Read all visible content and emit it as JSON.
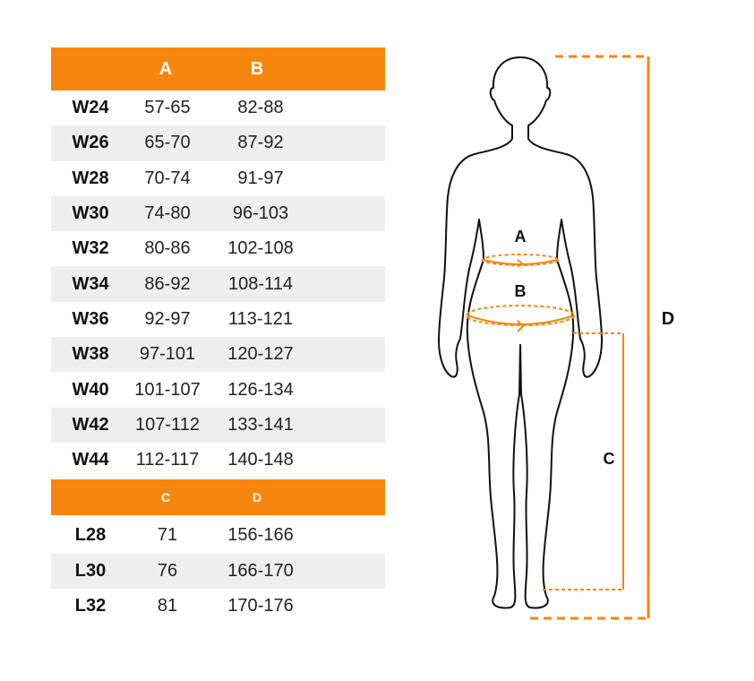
{
  "table_top": {
    "headers": [
      "A",
      "B"
    ],
    "rows": [
      [
        "W24",
        "57-65",
        "82-88"
      ],
      [
        "W26",
        "65-70",
        "87-92"
      ],
      [
        "W28",
        "70-74",
        "91-97"
      ],
      [
        "W30",
        "74-80",
        "96-103"
      ],
      [
        "W32",
        "80-86",
        "102-108"
      ],
      [
        "W34",
        "86-92",
        "108-114"
      ],
      [
        "W36",
        "92-97",
        "113-121"
      ],
      [
        "W38",
        "97-101",
        "120-127"
      ],
      [
        "W40",
        "101-107",
        "126-134"
      ],
      [
        "W42",
        "107-112",
        "133-141"
      ],
      [
        "W44",
        "112-117",
        "140-148"
      ]
    ]
  },
  "table_bottom": {
    "headers": [
      "C",
      "D"
    ],
    "rows": [
      [
        "L28",
        "71",
        "156-166"
      ],
      [
        "L30",
        "76",
        "166-170"
      ],
      [
        "L32",
        "81",
        "170-176"
      ]
    ]
  },
  "figure": {
    "label_a": "A",
    "label_b": "B",
    "label_c": "C",
    "label_d": "D",
    "accent_color": "#f7860f",
    "outline_color": "#111111"
  }
}
